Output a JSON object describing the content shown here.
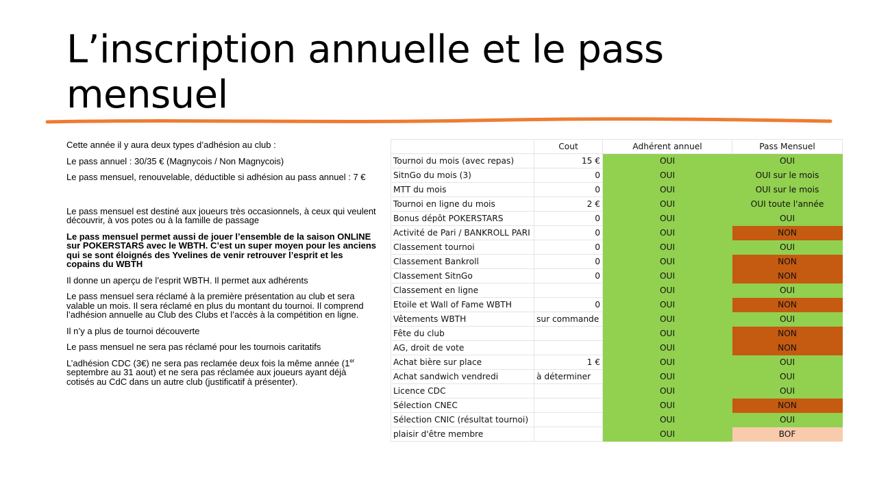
{
  "slide": {
    "title": "L’inscription annuelle et le pass mensuel",
    "colors": {
      "underline": "#ed7d31",
      "oui": "#92d050",
      "non": "#c55a11",
      "bof": "#f8cbad"
    }
  },
  "body": {
    "p1": "Cette année il y aura deux types d’adhésion au club :",
    "p2": "Le pass annuel : 30/35 € (Magnycois / Non Magnycois)",
    "p3": "Le pass mensuel, renouvelable, déductible si adhésion au pass annuel : 7 €",
    "p4": "Le pass mensuel est destiné aux joueurs très occasionnels, à ceux qui veulent découvrir, à vos potes ou à la famille de passage",
    "p5": "Le pass mensuel permet aussi de jouer l’ensemble de la saison ONLINE sur POKERSTARS avec le WBTH. C’est un super moyen pour les anciens qui se sont éloignés des Yvelines de venir retrouver l’esprit et les copains du WBTH",
    "p6": "Il donne un aperçu de l’esprit WBTH. Il permet aux adhérents",
    "p7": "Le pass mensuel sera réclamé à la première présentation au club et sera valable un mois. Il sera réclamé en plus du montant du tournoi. Il comprend l’adhésion annuelle au Club des Clubs et l’accès à la compétition en ligne.",
    "p8": "Il n’y a plus de tournoi découverte",
    "p9": "Le pass mensuel ne sera pas réclamé pour les tournois caritatifs",
    "p10a": "L’adhésion CDC (3€) ne sera pas reclamée deux fois la même année (1",
    "p10sup": "er",
    "p10b": " septembre au 31 aout) et ne sera pas réclamée aux joueurs ayant déjà cotisés au CdC dans un autre club (justificatif à présenter)."
  },
  "table": {
    "headers": [
      "",
      "Cout",
      "Adhérent annuel",
      "Pass Mensuel"
    ],
    "rows": [
      {
        "label": "Tournoi du mois (avec repas)",
        "cost": "15 €",
        "annual": "OUI",
        "monthly": "OUI",
        "status": "yes"
      },
      {
        "label": "SitnGo du mois (3)",
        "cost": "0",
        "annual": "OUI",
        "monthly": "OUI sur le mois",
        "status": "yes"
      },
      {
        "label": "MTT du mois",
        "cost": "0",
        "annual": "OUI",
        "monthly": "OUI sur le mois",
        "status": "yes"
      },
      {
        "label": "Tournoi en ligne du mois",
        "cost": "2 €",
        "annual": "OUI",
        "monthly": "OUI toute l'année",
        "status": "yes"
      },
      {
        "label": "Bonus dépôt POKERSTARS",
        "cost": "0",
        "annual": "OUI",
        "monthly": "OUI",
        "status": "yes"
      },
      {
        "label": "Activité de Pari / BANKROLL PARI",
        "cost": "0",
        "annual": "OUI",
        "monthly": "NON",
        "status": "no"
      },
      {
        "label": "Classement tournoi",
        "cost": "0",
        "annual": "OUI",
        "monthly": "OUI",
        "status": "yes"
      },
      {
        "label": "Classement Bankroll",
        "cost": "0",
        "annual": "OUI",
        "monthly": "NON",
        "status": "no"
      },
      {
        "label": "Classement SitnGo",
        "cost": "0",
        "annual": "OUI",
        "monthly": "NON",
        "status": "no"
      },
      {
        "label": "Classement en ligne",
        "cost": "",
        "annual": "OUI",
        "monthly": "OUI",
        "status": "yes"
      },
      {
        "label": "Etoile et Wall of Fame WBTH",
        "cost": "0",
        "annual": "OUI",
        "monthly": "NON",
        "status": "no"
      },
      {
        "label": "Vêtements WBTH",
        "cost": "sur commande",
        "annual": "OUI",
        "monthly": "OUI",
        "status": "yes"
      },
      {
        "label": "Fête du club",
        "cost": "",
        "annual": "OUI",
        "monthly": "NON",
        "status": "no"
      },
      {
        "label": "AG, droit de vote",
        "cost": "",
        "annual": "OUI",
        "monthly": "NON",
        "status": "no"
      },
      {
        "label": "Achat bière sur place",
        "cost": "1 €",
        "annual": "OUI",
        "monthly": "OUI",
        "status": "yes"
      },
      {
        "label": "Achat sandwich vendredi",
        "cost": "à déterminer",
        "annual": "OUI",
        "monthly": "OUI",
        "status": "yes"
      },
      {
        "label": "Licence CDC",
        "cost": "",
        "annual": "OUI",
        "monthly": "OUI",
        "status": "yes"
      },
      {
        "label": "Sélection CNEC",
        "cost": "",
        "annual": "OUI",
        "monthly": "NON",
        "status": "no"
      },
      {
        "label": "Sélection CNIC (résultat tournoi)",
        "cost": "",
        "annual": "OUI",
        "monthly": "OUI",
        "status": "yes"
      },
      {
        "label": "plaisir d'être membre",
        "cost": "",
        "annual": "OUI",
        "monthly": "BOF",
        "status": "bof"
      }
    ]
  }
}
